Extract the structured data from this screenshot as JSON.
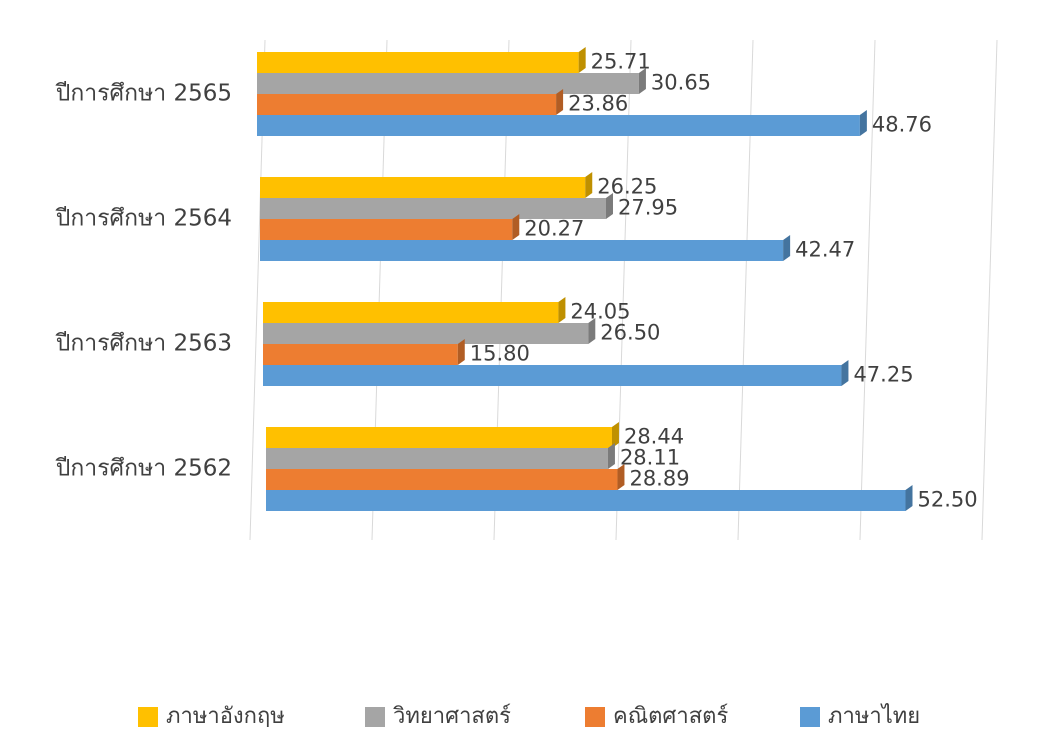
{
  "chart_data": {
    "type": "bar",
    "orientation": "horizontal",
    "categories": [
      "ปีการศึกษา 2565",
      "ปีการศึกษา 2564",
      "ปีการศึกษา 2563",
      "ปีการศึกษา 2562"
    ],
    "series": [
      {
        "name": "ภาษาอังกฤษ",
        "color": "#ffc000",
        "values": [
          25.71,
          26.25,
          24.05,
          28.44
        ],
        "value_labels": [
          "25.71",
          "26.25",
          "24.05",
          "28.44"
        ]
      },
      {
        "name": "วิทยาศาสตร์",
        "color": "#a5a5a5",
        "values": [
          30.65,
          27.95,
          26.5,
          28.11
        ],
        "value_labels": [
          "30.65",
          "27.95",
          "26.50",
          "28.11"
        ]
      },
      {
        "name": "คณิตศาสตร์",
        "color": "#ed7d31",
        "values": [
          23.86,
          20.27,
          15.8,
          28.89
        ],
        "value_labels": [
          "23.86",
          "20.27",
          "15.80",
          "28.89"
        ]
      },
      {
        "name": "ภาษาไทย",
        "color": "#5b9bd5",
        "values": [
          48.76,
          42.47,
          47.25,
          52.5
        ],
        "value_labels": [
          "48.76",
          "42.47",
          "47.25",
          "52.50"
        ]
      }
    ],
    "xlim": [
      0,
      60
    ],
    "xticks": [
      0,
      10,
      20,
      30,
      40,
      50,
      60
    ],
    "grid": true,
    "legend": "bottom"
  }
}
